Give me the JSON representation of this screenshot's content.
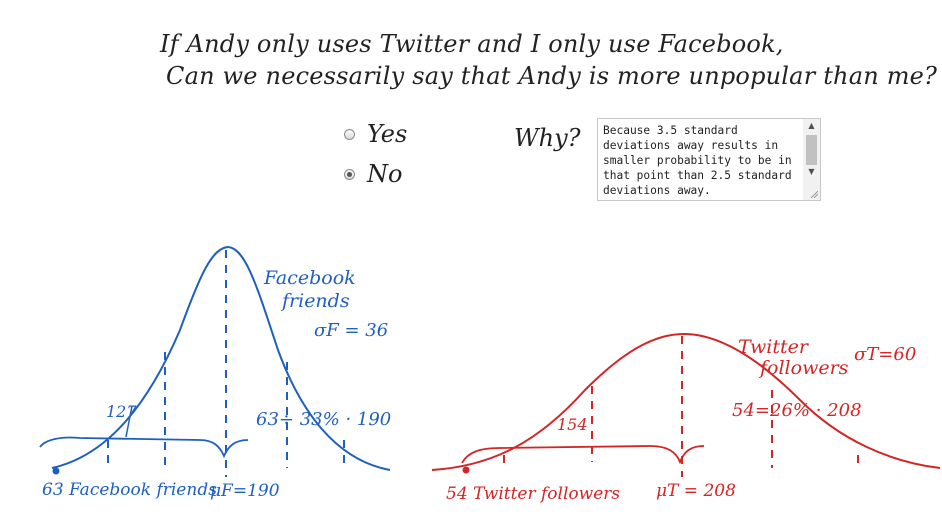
{
  "question": {
    "line1": "If Andy only uses Twitter and I only use Facebook,",
    "line2": "Can we necessarily say that Andy is more unpopular than me?"
  },
  "options": [
    {
      "label": "Yes",
      "selected": false
    },
    {
      "label": "No",
      "selected": true
    }
  ],
  "why_label": "Why?",
  "answer": {
    "text": "Because 3.5 standard deviations away results in smaller probability to be in that point than 2.5 standard deviations away."
  },
  "facebook_chart": {
    "color": "#1f5fbf",
    "title_line1": "Facebook",
    "title_line2": "friends",
    "sigma_label": "σF = 36",
    "mean_label": "μF=190",
    "point_label": "63 Facebook friends",
    "left_count_label": "127",
    "pct_label": "63÷ 33% · 190"
  },
  "twitter_chart": {
    "color": "#d42424",
    "title_line1": "Twitter",
    "title_line2": "followers",
    "sigma_label": "σT=60",
    "mean_label": "μT = 208",
    "point_label": "54 Twitter followers",
    "left_count_label": "154",
    "pct_label": "54=26% · 208"
  }
}
